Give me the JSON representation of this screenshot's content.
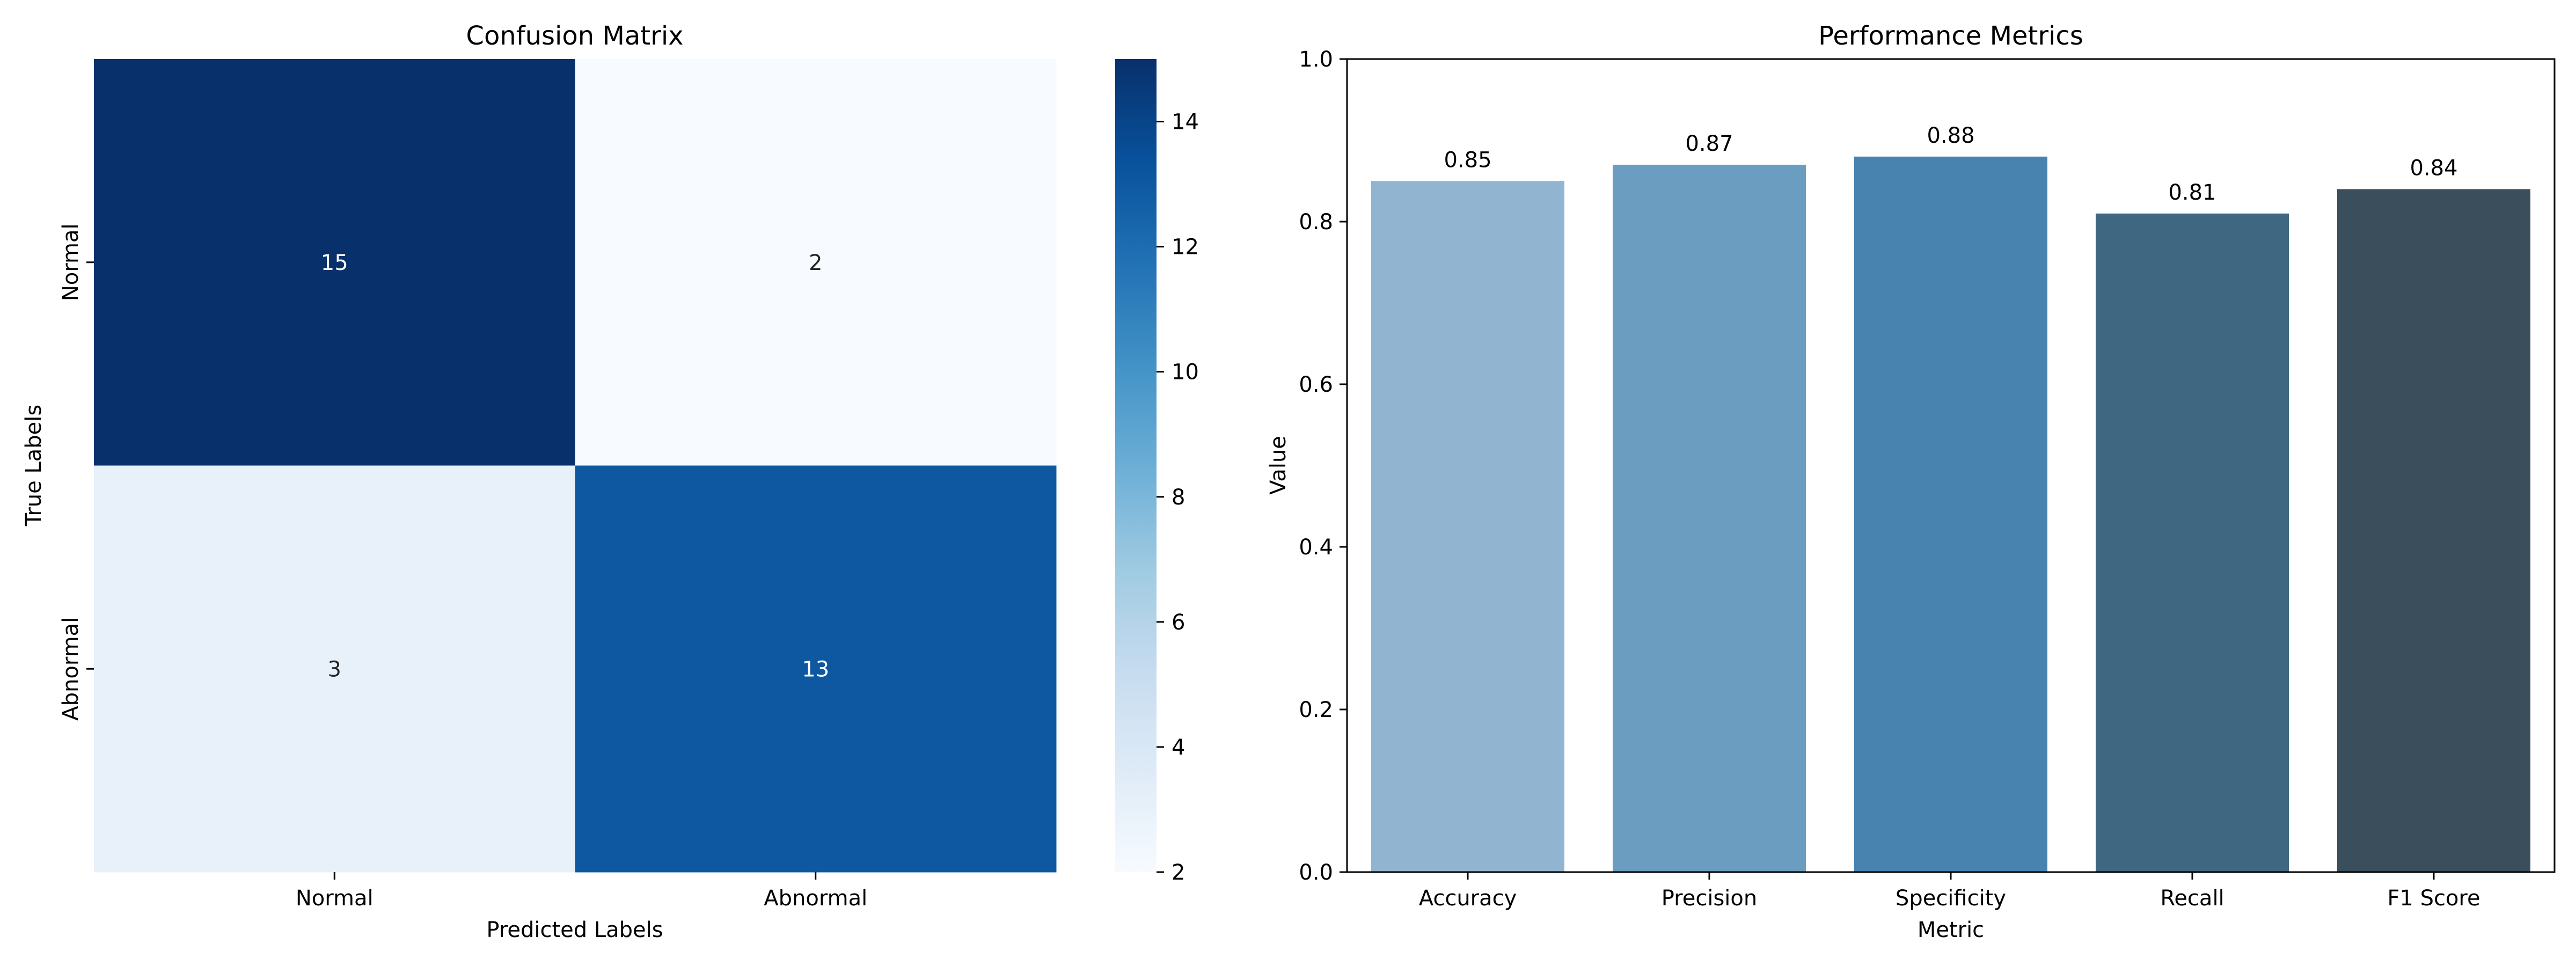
{
  "chart_data": [
    {
      "type": "heatmap",
      "title": "Confusion Matrix",
      "xlabel": "Predicted Labels",
      "ylabel": "True Labels",
      "x_categories": [
        "Normal",
        "Abnormal"
      ],
      "y_categories": [
        "Normal",
        "Abnormal"
      ],
      "values": [
        [
          15,
          2
        ],
        [
          3,
          13
        ]
      ],
      "colorbar": {
        "min": 2,
        "max": 15,
        "ticks": [
          2,
          4,
          6,
          8,
          10,
          12,
          14
        ],
        "colormap": "Blues"
      },
      "grid": false
    },
    {
      "type": "bar",
      "title": "Performance Metrics",
      "xlabel": "Metric",
      "ylabel": "Value",
      "categories": [
        "Accuracy",
        "Precision",
        "Specificity",
        "Recall",
        "F1 Score"
      ],
      "values": [
        0.85,
        0.87,
        0.88,
        0.81,
        0.84
      ],
      "value_labels": [
        "0.85",
        "0.87",
        "0.88",
        "0.81",
        "0.84"
      ],
      "colors": [
        "#91b5d0",
        "#6b9dc0",
        "#4883b0",
        "#406781",
        "#3a4e5c"
      ],
      "ylim": [
        0.0,
        1.0
      ],
      "yticks": [
        0.0,
        0.2,
        0.4,
        0.6,
        0.8,
        1.0
      ],
      "ytick_labels": [
        "0.0",
        "0.2",
        "0.4",
        "0.6",
        "0.8",
        "1.0"
      ],
      "grid": false
    }
  ]
}
